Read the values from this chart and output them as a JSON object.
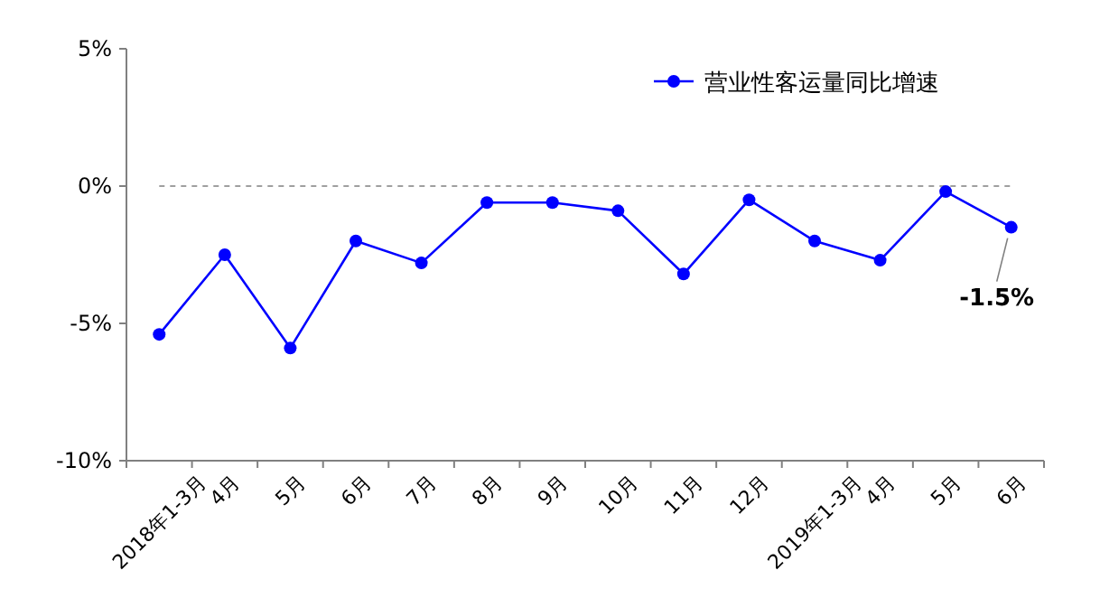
{
  "chart_data": {
    "type": "line",
    "categories": [
      "2018年1-3月",
      "4月",
      "5月",
      "6月",
      "7月",
      "8月",
      "9月",
      "10月",
      "11月",
      "12月",
      "2019年1-3月",
      "4月",
      "5月",
      "6月"
    ],
    "series": [
      {
        "name": "营业性客运量同比增速",
        "color": "#0000ff",
        "values": [
          -5.4,
          -2.5,
          -5.9,
          -2.0,
          -2.8,
          -0.6,
          -0.6,
          -0.9,
          -3.2,
          -0.5,
          -2.0,
          -2.7,
          -0.2,
          -1.5
        ],
        "value_labels": [
          null,
          null,
          null,
          null,
          null,
          null,
          null,
          null,
          null,
          null,
          null,
          null,
          null,
          "-1.5%"
        ]
      }
    ],
    "ylim": [
      -10,
      5
    ],
    "yticks": [
      {
        "value": -10,
        "label": "-10%"
      },
      {
        "value": -5,
        "label": "-5%"
      },
      {
        "value": 0,
        "label": "0%"
      },
      {
        "value": 5,
        "label": "5%"
      }
    ],
    "ref_lines": [
      {
        "axis": "y",
        "value": 0,
        "color": "#808080",
        "line_style": "dashed"
      }
    ],
    "legend": "top right",
    "marker": "circle",
    "line_style": "solid",
    "grid": false
  }
}
